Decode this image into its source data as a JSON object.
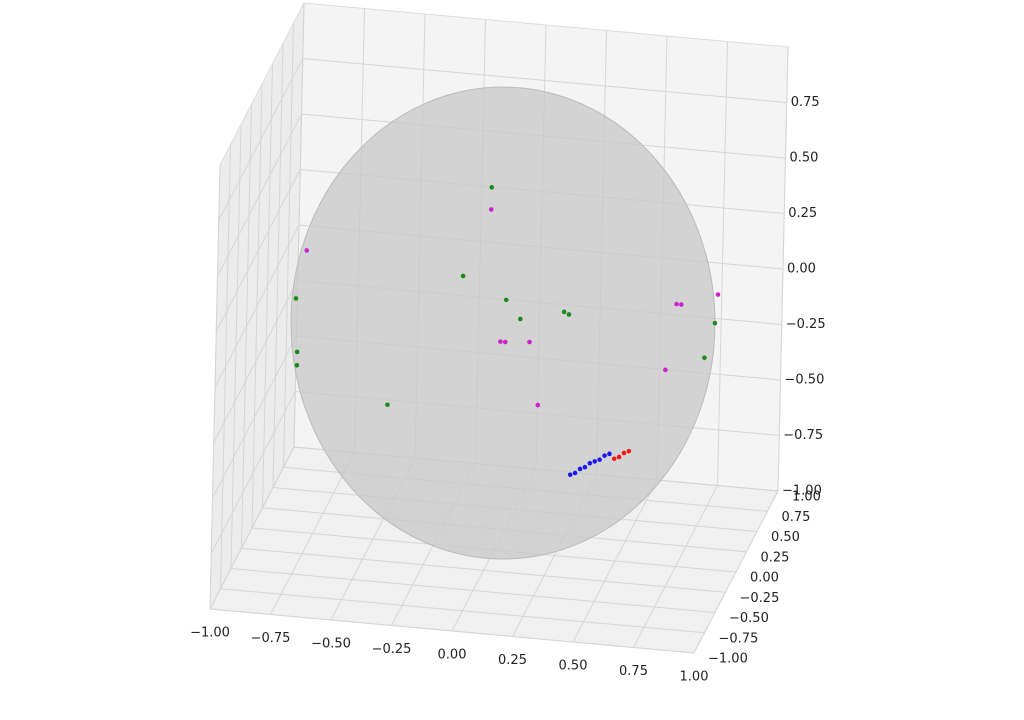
{
  "chart_data": {
    "type": "scatter3d",
    "xlim": [
      -1,
      1
    ],
    "ylim": [
      -1,
      1
    ],
    "zlim": [
      -1,
      1
    ],
    "xticks": [
      {
        "value": -1,
        "label": "−1.00"
      },
      {
        "value": -0.75,
        "label": "−0.75"
      },
      {
        "value": -0.5,
        "label": "−0.50"
      },
      {
        "value": -0.25,
        "label": "−0.25"
      },
      {
        "value": 0,
        "label": "0.00"
      },
      0.25,
      {
        "value": 0.5,
        "label": "0.50"
      },
      0.75,
      {
        "value": 1,
        "label": "1.00"
      }
    ],
    "yticks": [
      {
        "value": -1,
        "label": "−1.00"
      },
      {
        "value": -0.75,
        "label": "−0.75"
      },
      {
        "value": -0.5,
        "label": "−0.50"
      },
      {
        "value": -0.25,
        "label": "−0.25"
      },
      {
        "value": 0,
        "label": "0.00"
      },
      0.25,
      {
        "value": 0.5,
        "label": "0.50"
      },
      0.75,
      {
        "value": 1,
        "label": "1.00"
      }
    ],
    "zticks": [
      {
        "value": -1,
        "label": "−1.00"
      },
      {
        "value": -0.75,
        "label": "−0.75"
      },
      {
        "value": -0.5,
        "label": "−0.50"
      },
      {
        "value": -0.25,
        "label": "−0.25"
      },
      {
        "value": 0,
        "label": "0.00"
      },
      0.25,
      {
        "value": 0.5,
        "label": "0.50"
      },
      0.75
    ],
    "grid": true,
    "series": [
      {
        "color": "#1a8a1a",
        "x": [
          0.04,
          -0.07,
          0.11,
          0.17,
          0.35,
          0.37,
          0.89,
          0.85,
          -0.83,
          -0.83,
          -0.84,
          -0.37
        ],
        "y": [
          -0.5,
          -0.5,
          -0.5,
          -0.5,
          -0.5,
          -0.5,
          0,
          0,
          0,
          0,
          0,
          -0.5
        ],
        "z": [
          0.82,
          0.41,
          0.32,
          0.24,
          0.29,
          0.28,
          0.11,
          -0.05,
          -0.25,
          -0.19,
          0.05,
          -0.2
        ]
      },
      {
        "color": "#cc22cc",
        "x": [
          0.04,
          -0.8,
          0.09,
          0.11,
          0.21,
          0.25,
          0.73,
          0.75,
          0.9,
          0.69
        ],
        "y": [
          -0.5,
          0,
          -0.5,
          -0.5,
          -0.5,
          -0.5,
          0,
          0,
          0,
          0
        ],
        "z": [
          0.72,
          0.27,
          0.13,
          0.13,
          0.14,
          -0.14,
          0.18,
          0.18,
          0.24,
          -0.12
        ]
      },
      {
        "color": "#1a1aee",
        "x": [
          0.39,
          0.41,
          0.43,
          0.45,
          0.47,
          0.49,
          0.51,
          0.53,
          0.55
        ],
        "y": [
          -0.5,
          -0.5,
          -0.5,
          -0.5,
          -0.5,
          -0.5,
          -0.5,
          -0.5,
          -0.5
        ],
        "z": [
          -0.44,
          -0.43,
          -0.41,
          -0.4,
          -0.38,
          -0.37,
          -0.36,
          -0.34,
          -0.33
        ]
      },
      {
        "color": "#ee1a1a",
        "x": [
          0.57,
          0.59,
          0.61,
          0.63
        ],
        "y": [
          -0.5,
          -0.5,
          -0.5,
          -0.5
        ],
        "z": [
          -0.35,
          -0.34,
          -0.32,
          -0.31
        ]
      }
    ]
  }
}
